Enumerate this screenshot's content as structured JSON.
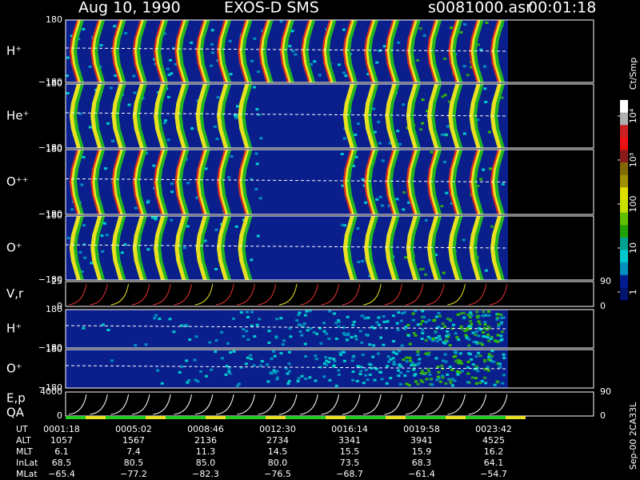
{
  "header": {
    "date": "Aug 10, 1990",
    "instrument": "EXOS-D SMS",
    "file": "s0081000.asr",
    "time": "00:01:18"
  },
  "chart_data": {
    "type": "spectrogram",
    "panels": [
      {
        "label": "H⁺",
        "ylim": [
          -180,
          180
        ],
        "yticks": [
          180,
          {
            "value": -180,
            "label": "−180"
          }
        ]
      },
      {
        "label": "He⁺",
        "ylim": [
          -180,
          180
        ],
        "yticks": [
          180,
          {
            "value": -180,
            "label": "−180"
          }
        ]
      },
      {
        "label": "O⁺⁺",
        "ylim": [
          -180,
          180
        ],
        "yticks": [
          180,
          {
            "value": -180,
            "label": "−180"
          }
        ]
      },
      {
        "label": "O⁺",
        "ylim": [
          -180,
          180
        ],
        "yticks": [
          180,
          {
            "value": -180,
            "label": "−180"
          }
        ]
      },
      {
        "label": "V,r",
        "ylim": [
          0,
          25
        ],
        "yticks": [
          25,
          0
        ],
        "y2lim": [
          0,
          90
        ],
        "y2ticks": [
          90,
          0
        ]
      },
      {
        "label": "H⁺",
        "ylim": [
          -180,
          180
        ],
        "yticks": [
          180,
          {
            "value": -180,
            "label": "−180"
          }
        ]
      },
      {
        "label": "O⁺",
        "ylim": [
          -180,
          180
        ],
        "yticks": [
          180,
          {
            "value": -180,
            "label": "−180"
          }
        ]
      },
      {
        "label": "E,p",
        "label2": "QA",
        "ylim": [
          0,
          4000
        ],
        "yticks": [
          4000,
          0
        ],
        "y2lim": [
          0,
          90
        ],
        "y2ticks": [
          90,
          0
        ]
      }
    ],
    "colorbar": {
      "label": "Ct/Smp",
      "scale": "log",
      "lim": [
        1,
        10000
      ],
      "ticks": [
        {
          "value": 10000,
          "label": "10⁴"
        },
        {
          "value": 1000,
          "label": "10³"
        },
        100,
        10,
        1
      ]
    }
  },
  "ephemeris": {
    "rows": [
      [
        "UT",
        "0001:18",
        "0005:02",
        "0008:46",
        "0012:30",
        "0016:14",
        "0019:58",
        "0023:42"
      ],
      [
        "ALT",
        "1057",
        "1567",
        "2136",
        "2734",
        "3341",
        "3941",
        "4525"
      ],
      [
        "MLT",
        "6.1",
        "7.4",
        "11.3",
        "14.5",
        "15.5",
        "15.9",
        "16.2"
      ],
      [
        "InLat",
        "68.5",
        "80.5",
        "85.0",
        "80.0",
        "73.5",
        "68.3",
        "64.1"
      ],
      [
        "MLat",
        "−65.4",
        "−77.2",
        "−82.3",
        "−76.5",
        "−68.7",
        "−61.4",
        "−54.7"
      ]
    ]
  },
  "footer": {
    "code": "Sep-00 2CA33L"
  }
}
